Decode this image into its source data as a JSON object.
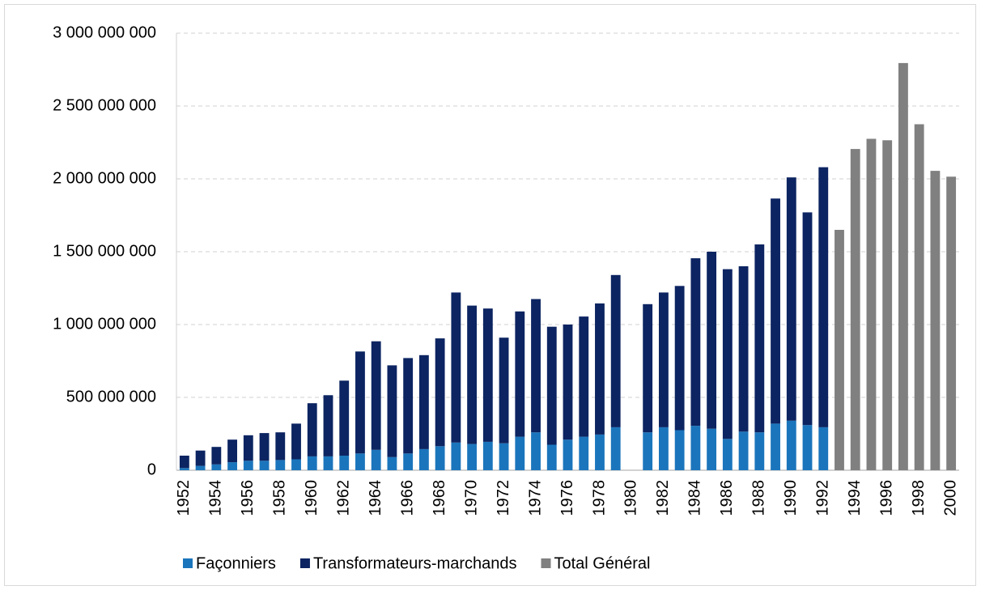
{
  "chart_data": {
    "type": "bar",
    "stacked": true,
    "categories": [
      "1952",
      null,
      "1954",
      null,
      "1956",
      null,
      "1958",
      null,
      "1960",
      null,
      "1962",
      null,
      "1964",
      null,
      "1966",
      null,
      "1968",
      null,
      "1970",
      null,
      "1972",
      null,
      "1974",
      null,
      "1976",
      null,
      "1978",
      null,
      "1980",
      null,
      "1982",
      null,
      "1984",
      null,
      "1986",
      null,
      "1988",
      null,
      "1990",
      null,
      "1992",
      null,
      "1994",
      null,
      "1996",
      null,
      "1998",
      null,
      "2000"
    ],
    "series": [
      {
        "name": "Façonniers",
        "color": "#1b75bc",
        "values": [
          15000000,
          30000000,
          40000000,
          55000000,
          65000000,
          65000000,
          70000000,
          75000000,
          95000000,
          95000000,
          100000000,
          115000000,
          140000000,
          90000000,
          115000000,
          145000000,
          165000000,
          190000000,
          180000000,
          195000000,
          185000000,
          230000000,
          260000000,
          175000000,
          210000000,
          230000000,
          245000000,
          295000000,
          null,
          260000000,
          295000000,
          275000000,
          305000000,
          285000000,
          215000000,
          265000000,
          260000000,
          320000000,
          340000000,
          310000000,
          295000000,
          null,
          null,
          null,
          null,
          null,
          null,
          null,
          null
        ]
      },
      {
        "name": "Transformateurs-marchands",
        "color": "#0c2461",
        "values": [
          85000000,
          105000000,
          120000000,
          155000000,
          175000000,
          190000000,
          190000000,
          245000000,
          365000000,
          420000000,
          515000000,
          700000000,
          745000000,
          630000000,
          655000000,
          645000000,
          740000000,
          1030000000,
          950000000,
          915000000,
          725000000,
          860000000,
          915000000,
          810000000,
          790000000,
          825000000,
          900000000,
          1045000000,
          null,
          880000000,
          925000000,
          990000000,
          1150000000,
          1215000000,
          1165000000,
          1135000000,
          1290000000,
          1545000000,
          1670000000,
          1460000000,
          1785000000,
          null,
          null,
          null,
          null,
          null,
          null,
          null,
          null
        ]
      },
      {
        "name": "Total Général",
        "color": "#808080",
        "values": [
          null,
          null,
          null,
          null,
          null,
          null,
          null,
          null,
          null,
          null,
          null,
          null,
          null,
          null,
          null,
          null,
          null,
          null,
          null,
          null,
          null,
          null,
          null,
          null,
          null,
          null,
          null,
          null,
          null,
          null,
          null,
          null,
          null,
          null,
          null,
          null,
          null,
          null,
          null,
          null,
          null,
          1650000000,
          2205000000,
          2275000000,
          2265000000,
          2795000000,
          2375000000,
          2055000000,
          2015000000
        ]
      }
    ],
    "ylim": [
      0,
      3000000000
    ],
    "yticks": [
      0,
      {
        "value": 500000000,
        "label": "500 000 000"
      },
      {
        "value": 1000000000,
        "label": "1 000 000 000"
      },
      {
        "value": 1500000000,
        "label": "1 500 000 000"
      },
      {
        "value": 2000000000,
        "label": "2 000 000 000"
      },
      {
        "value": 2500000000,
        "label": "2 500 000 000"
      },
      {
        "value": 3000000000,
        "label": "3 000 000 000"
      }
    ],
    "grid": true,
    "legend": "bottom"
  }
}
